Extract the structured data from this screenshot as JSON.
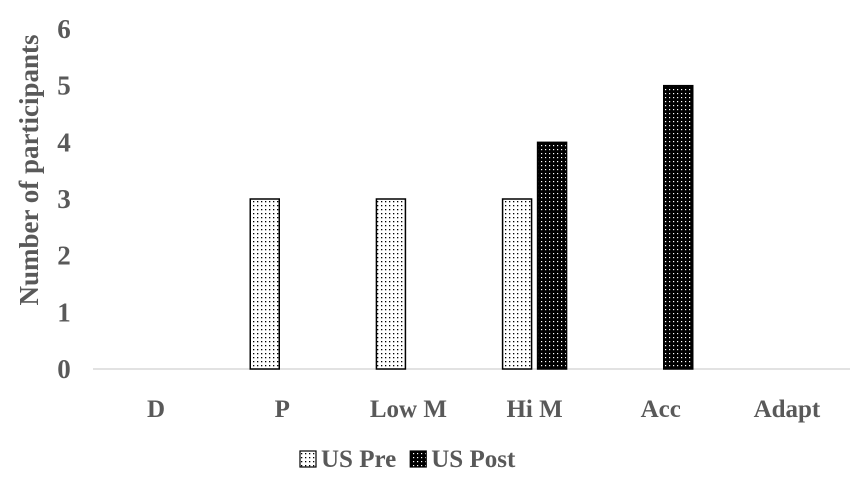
{
  "chart_data": {
    "type": "bar",
    "categories": [
      "D",
      "P",
      "Low M",
      "Hi M",
      "Acc",
      "Adapt"
    ],
    "series": [
      {
        "name": "US Pre",
        "values": [
          0,
          3,
          3,
          3,
          0,
          0
        ]
      },
      {
        "name": "US Post",
        "values": [
          0,
          0,
          0,
          4,
          5,
          0
        ]
      }
    ],
    "title": "",
    "xlabel": "",
    "ylabel": "Number of participants",
    "ylim": [
      0,
      6
    ],
    "yticks": [
      "0",
      "1",
      "2",
      "3",
      "4",
      "5",
      "6"
    ],
    "grid": false,
    "legend_position": "bottom",
    "colors": {
      "text": "#595959",
      "axis": "#d9d9d9",
      "bar_outline": "#000000"
    }
  }
}
